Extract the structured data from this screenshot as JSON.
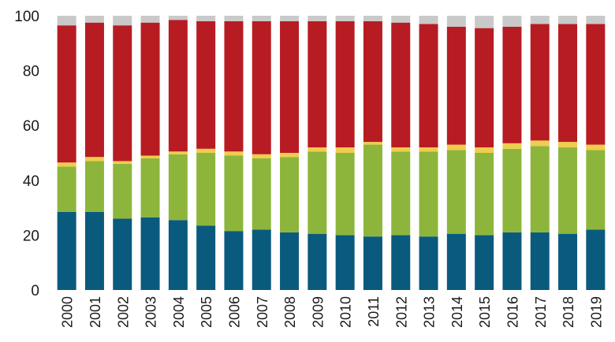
{
  "chart_data": {
    "type": "bar",
    "stacked": true,
    "categories": [
      "2000",
      "2001",
      "2002",
      "2003",
      "2004",
      "2005",
      "2006",
      "2007",
      "2008",
      "2009",
      "2010",
      "2011",
      "2012",
      "2013",
      "2014",
      "2015",
      "2016",
      "2017",
      "2018",
      "2019"
    ],
    "series": [
      {
        "color": "#0a5a7e",
        "values": [
          28.5,
          28.5,
          26,
          26.5,
          25.5,
          23.5,
          21.5,
          22,
          21,
          20.5,
          20,
          19.5,
          20,
          19.5,
          20.5,
          20,
          21,
          21,
          20.5,
          22
        ]
      },
      {
        "color": "#8db53c",
        "values": [
          16.5,
          18.5,
          20,
          21.5,
          24,
          26.5,
          27.5,
          26,
          27.5,
          30,
          30,
          33.5,
          30.5,
          31,
          30.5,
          30,
          30.5,
          31.5,
          31.5,
          29
        ]
      },
      {
        "color": "#efcd4d",
        "values": [
          1.5,
          1.5,
          1,
          1,
          1,
          1.5,
          1.5,
          1.5,
          1.5,
          1.5,
          2,
          1,
          1.5,
          1.5,
          2,
          2,
          2,
          2,
          2,
          2
        ]
      },
      {
        "color": "#b71c22",
        "values": [
          50,
          49,
          49.5,
          48.5,
          48,
          46.5,
          47.5,
          48.5,
          48,
          46,
          46,
          44,
          45.5,
          45,
          43,
          43.5,
          42.5,
          42.5,
          43,
          44
        ]
      },
      {
        "color": "#c9c9c9",
        "values": [
          3.5,
          2.5,
          3.5,
          2.5,
          1.5,
          2,
          2,
          2,
          2,
          2,
          2,
          2,
          2.5,
          3,
          4,
          4.5,
          4,
          3,
          3,
          3
        ]
      }
    ],
    "y_ticks": [
      0,
      20,
      40,
      60,
      80,
      100
    ],
    "ylim": [
      0,
      100
    ],
    "grid": false,
    "legend": "none",
    "title": "",
    "xlabel": "",
    "ylabel": ""
  }
}
